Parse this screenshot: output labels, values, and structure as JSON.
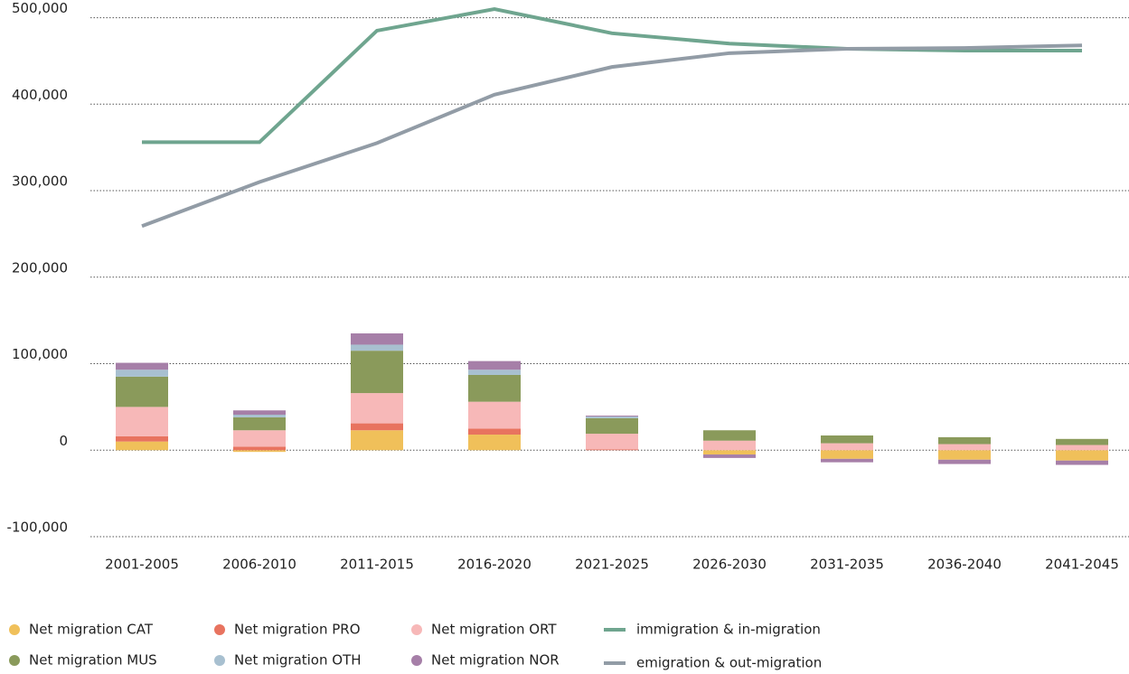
{
  "chart_data": {
    "type": "bar",
    "stacked": true,
    "categories": [
      "2001-2005",
      "2006-2010",
      "2011-2015",
      "2016-2020",
      "2021-2025",
      "2026-2030",
      "2031-2035",
      "2036-2040",
      "2041-2045"
    ],
    "series": [
      {
        "name": "Net migration CAT",
        "type": "bar",
        "color": "#f0c05a",
        "values": [
          10000,
          -2000,
          23000,
          18000,
          0,
          -5000,
          -10000,
          -11000,
          -12000
        ]
      },
      {
        "name": "Net migration PRO",
        "type": "bar",
        "color": "#e8735f",
        "values": [
          6000,
          4000,
          8000,
          7000,
          1000,
          0,
          0,
          0,
          0
        ]
      },
      {
        "name": "Net migration ORT",
        "type": "bar",
        "color": "#f7b8b8",
        "values": [
          34000,
          19000,
          35000,
          31000,
          18000,
          11000,
          8000,
          7000,
          6000
        ]
      },
      {
        "name": "Net migration MUS",
        "type": "bar",
        "color": "#8a9a5b",
        "values": [
          35000,
          15000,
          49000,
          31000,
          18000,
          12000,
          9000,
          8000,
          7000
        ]
      },
      {
        "name": "Net migration OTH",
        "type": "bar",
        "color": "#a8c0d0",
        "values": [
          8000,
          3000,
          7000,
          6000,
          2000,
          0,
          0,
          0,
          0
        ]
      },
      {
        "name": "Net migration NOR",
        "type": "bar",
        "color": "#a67fa8",
        "values": [
          8000,
          5000,
          13000,
          10000,
          1000,
          -4000,
          -4000,
          -5000,
          -5000
        ]
      },
      {
        "name": "immigration & in-migration",
        "type": "line",
        "color": "#6fa58f",
        "values": [
          356000,
          356000,
          485000,
          510000,
          482000,
          470000,
          464000,
          462000,
          462000
        ]
      },
      {
        "name": "emigration & out-migration",
        "type": "line",
        "color": "#929ca6",
        "values": [
          259000,
          310000,
          355000,
          411000,
          443000,
          459000,
          464000,
          465000,
          468000
        ]
      }
    ],
    "ylim": [
      -100000,
      510000
    ],
    "yticks": [
      {
        "value": -100000,
        "label": "-100,000"
      },
      0,
      {
        "value": 100000,
        "label": "100,000"
      },
      {
        "value": 200000,
        "label": "200,000"
      },
      {
        "value": 300000,
        "label": "300,000"
      },
      {
        "value": 400000,
        "label": "400,000"
      },
      {
        "value": 500000,
        "label": "500,000"
      }
    ],
    "grid": true,
    "legend": "bottom"
  }
}
